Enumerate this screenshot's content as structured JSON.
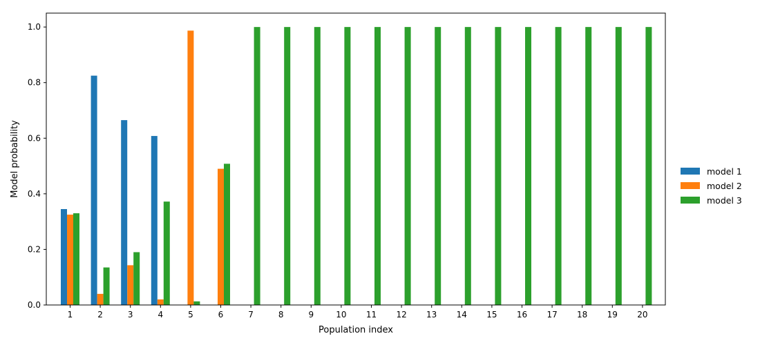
{
  "chart_data": {
    "type": "bar",
    "xlabel": "Population index",
    "ylabel": "Model probability",
    "ylim": [
      0,
      1.05
    ],
    "yticks": [
      "0.0",
      "0.2",
      "0.4",
      "0.6",
      "0.8",
      "1.0"
    ],
    "categories": [
      "1",
      "2",
      "3",
      "4",
      "5",
      "6",
      "7",
      "8",
      "9",
      "10",
      "11",
      "12",
      "13",
      "14",
      "15",
      "16",
      "17",
      "18",
      "19",
      "20"
    ],
    "series": [
      {
        "name": "model 1",
        "color": "#1f77b4",
        "values": [
          0.345,
          0.825,
          0.665,
          0.608,
          0,
          0,
          0,
          0,
          0,
          0,
          0,
          0,
          0,
          0,
          0,
          0,
          0,
          0,
          0,
          0
        ]
      },
      {
        "name": "model 2",
        "color": "#ff7f0e",
        "values": [
          0.325,
          0.04,
          0.143,
          0.02,
          0.987,
          0.49,
          0,
          0,
          0,
          0,
          0,
          0,
          0,
          0,
          0,
          0,
          0,
          0,
          0,
          0
        ]
      },
      {
        "name": "model 3",
        "color": "#2ca02c",
        "values": [
          0.33,
          0.135,
          0.19,
          0.372,
          0.013,
          0.508,
          1.0,
          1.0,
          1.0,
          1.0,
          1.0,
          1.0,
          1.0,
          1.0,
          1.0,
          1.0,
          1.0,
          1.0,
          1.0,
          1.0
        ]
      }
    ],
    "grid": false,
    "legend_position": "right"
  }
}
